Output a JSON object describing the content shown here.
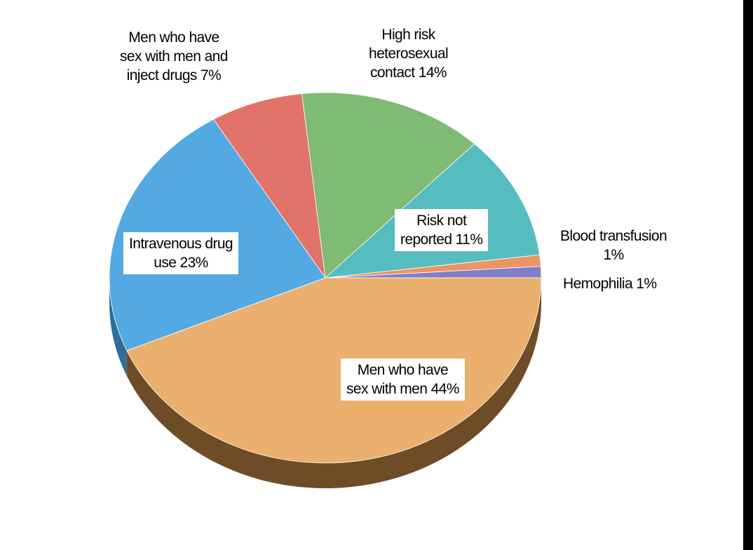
{
  "chart_data": {
    "type": "pie",
    "start_angle_deg": 0,
    "direction": "counterclockwise",
    "slices": [
      {
        "key": "hemophilia",
        "label_lines": [
          "Hemophilia 1%"
        ],
        "value": 1,
        "color": "#7F7FC9",
        "side": "#4E4E8A"
      },
      {
        "key": "blood-transfusion",
        "label_lines": [
          "Blood transfusion",
          "1%"
        ],
        "value": 1,
        "color": "#EC9564",
        "side": "#9C5A33"
      },
      {
        "key": "risk-not-reported",
        "label_lines": [
          "Risk not",
          "reported 11%"
        ],
        "value": 11,
        "color": "#55BDBF",
        "side": "#2E7E80"
      },
      {
        "key": "high-risk-heterosexual",
        "label_lines": [
          "High risk",
          "heterosexual",
          "contact 14%"
        ],
        "value": 14,
        "color": "#7FBB73",
        "side": "#4B7E42"
      },
      {
        "key": "msm-inject-drugs",
        "label_lines": [
          "Men who have",
          "sex with men and",
          "inject drugs 7%"
        ],
        "value": 7,
        "color": "#E2736A",
        "side": "#9A403A"
      },
      {
        "key": "intravenous-drug-use",
        "label_lines": [
          "Intravenous drug",
          "use 23%"
        ],
        "value": 23,
        "color": "#54A9E2",
        "side": "#2D6E9A"
      },
      {
        "key": "msm",
        "label_lines": [
          "Men who have",
          "sex with men 44%"
        ],
        "value": 44,
        "color": "#EBB06D",
        "side": "#6E4C27"
      }
    ]
  }
}
